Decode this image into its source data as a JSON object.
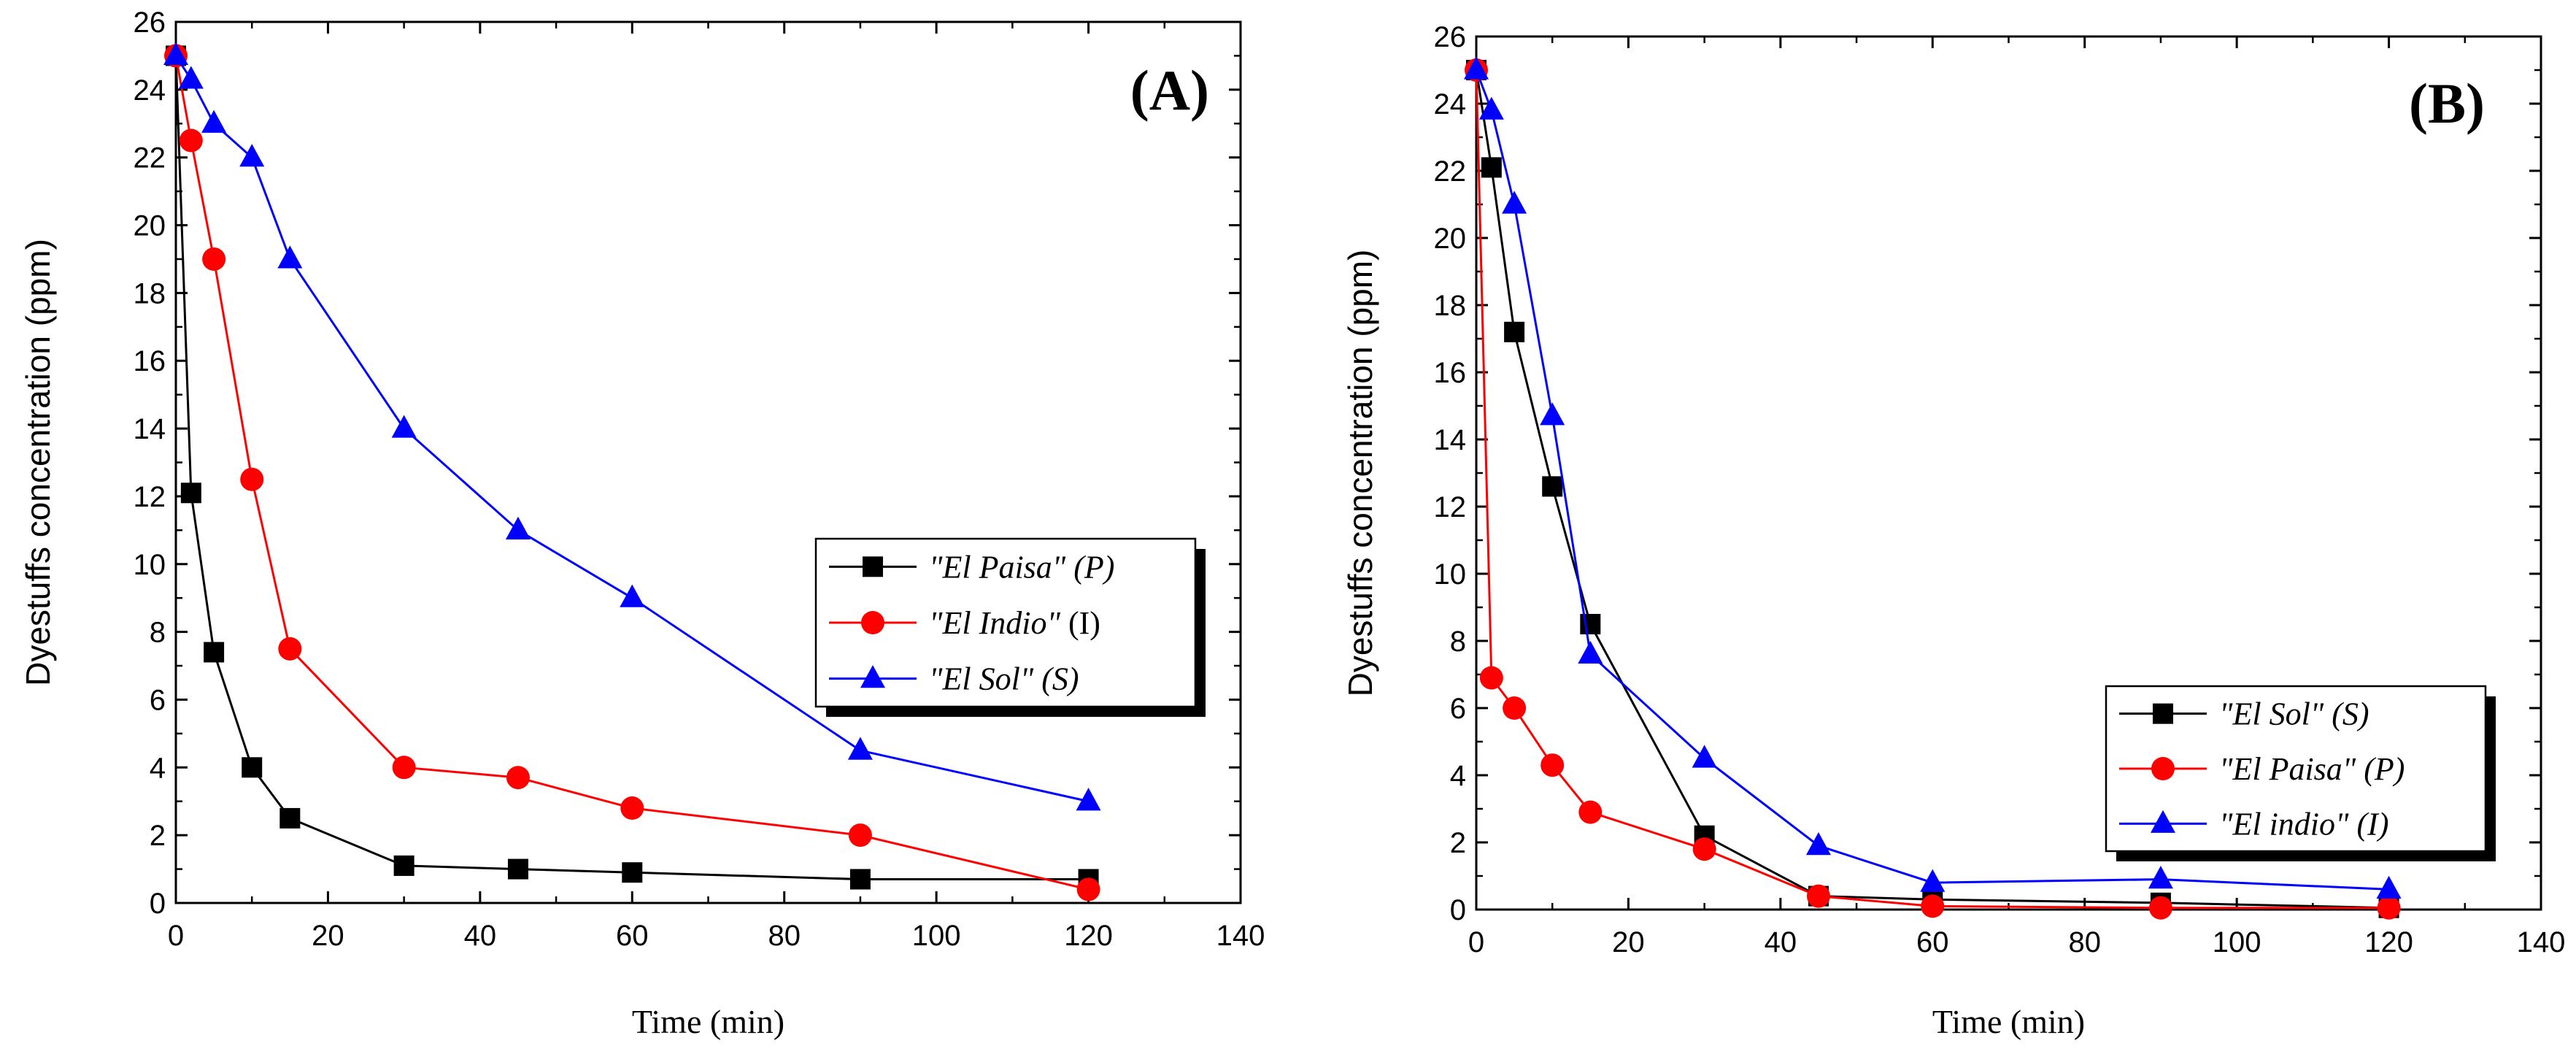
{
  "chart_data": [
    {
      "type": "line",
      "panel_tag": "(A)",
      "title": "",
      "xlabel": "Time (min)",
      "ylabel": "Dyestuffs concentration (ppm)",
      "xlim": [
        0,
        140
      ],
      "ylim": [
        0,
        26
      ],
      "xticks": [
        0,
        20,
        40,
        60,
        80,
        100,
        120,
        140
      ],
      "yticks": [
        0,
        2,
        4,
        6,
        8,
        10,
        12,
        14,
        16,
        18,
        20,
        22,
        24,
        26
      ],
      "xtick_labels": [
        "0",
        "20",
        "40",
        "60",
        "80",
        "100",
        "120",
        "140"
      ],
      "ytick_labels": [
        "0",
        "2",
        "4",
        "6",
        "8",
        "10",
        "12",
        "14",
        "16",
        "18",
        "20",
        "22",
        "24",
        "26"
      ],
      "grid": false,
      "legend_position": "center-right",
      "series": [
        {
          "name": "\"El Paisa\" (P)",
          "legend_name": "\"El Paisa\"",
          "legend_suffix": "(P)",
          "suffix_italic": true,
          "color": "#000000",
          "marker": "square",
          "x": [
            0,
            2,
            5,
            10,
            15,
            30,
            45,
            60,
            90,
            120
          ],
          "y": [
            25,
            12.1,
            7.4,
            4.0,
            2.5,
            1.1,
            1.0,
            0.9,
            0.7,
            0.7
          ]
        },
        {
          "name": "\"El Indio\" (I)",
          "legend_name": "\"El Indio\"",
          "legend_suffix": "(I)",
          "suffix_italic": false,
          "color": "#ff0000",
          "marker": "circle",
          "x": [
            0,
            2,
            5,
            10,
            15,
            30,
            45,
            60,
            90,
            120
          ],
          "y": [
            25,
            22.5,
            19,
            12.5,
            7.5,
            4.0,
            3.7,
            2.8,
            2.0,
            0.4
          ]
        },
        {
          "name": "\"El Sol\" (S)",
          "legend_name": "\"El Sol\"",
          "legend_suffix": "(S)",
          "suffix_italic": true,
          "color": "#0000ff",
          "marker": "triangle",
          "x": [
            0,
            2,
            5,
            10,
            15,
            30,
            45,
            60,
            90,
            120
          ],
          "y": [
            25,
            24.3,
            23,
            22,
            19,
            14,
            11,
            9,
            4.5,
            3.0
          ]
        }
      ]
    },
    {
      "type": "line",
      "panel_tag": "(B)",
      "title": "",
      "xlabel": "Time (min)",
      "ylabel": "Dyestuffs concentration (ppm)",
      "xlim": [
        0,
        140
      ],
      "ylim": [
        0,
        26
      ],
      "xticks": [
        0,
        20,
        40,
        60,
        80,
        100,
        120,
        140
      ],
      "yticks": [
        0,
        2,
        4,
        6,
        8,
        10,
        12,
        14,
        16,
        18,
        20,
        22,
        24,
        26
      ],
      "xtick_labels": [
        "0",
        "20",
        "40",
        "60",
        "80",
        "100",
        "120",
        "140"
      ],
      "ytick_labels": [
        "0",
        "2",
        "4",
        "6",
        "8",
        "10",
        "12",
        "14",
        "16",
        "18",
        "20",
        "22",
        "24",
        "26"
      ],
      "grid": false,
      "legend_position": "bottom-right",
      "series": [
        {
          "name": "\"El Sol\" (S)",
          "legend_name": "\"El Sol\"",
          "legend_suffix": "(S)",
          "suffix_italic": true,
          "color": "#000000",
          "marker": "square",
          "x": [
            0,
            2,
            5,
            10,
            15,
            30,
            45,
            60,
            90,
            120
          ],
          "y": [
            25,
            22.1,
            17.2,
            12.6,
            8.5,
            2.2,
            0.4,
            0.3,
            0.2,
            0.05
          ]
        },
        {
          "name": "\"El Paisa\" (P)",
          "legend_name": "\"El Paisa\"",
          "legend_suffix": "(P)",
          "suffix_italic": true,
          "color": "#ff0000",
          "marker": "circle",
          "x": [
            0,
            2,
            5,
            10,
            15,
            30,
            45,
            60,
            90,
            120
          ],
          "y": [
            25,
            6.9,
            6.0,
            4.3,
            2.9,
            1.8,
            0.4,
            0.1,
            0.05,
            0.05
          ]
        },
        {
          "name": "\"El indio\" (I)",
          "legend_name": "\"El indio\"",
          "legend_suffix": "(I)",
          "suffix_italic": true,
          "color": "#0000ff",
          "marker": "triangle",
          "x": [
            0,
            2,
            5,
            10,
            15,
            30,
            45,
            60,
            90,
            120
          ],
          "y": [
            25,
            23.8,
            21,
            14.7,
            7.6,
            4.5,
            1.9,
            0.8,
            0.9,
            0.6
          ]
        }
      ]
    }
  ]
}
